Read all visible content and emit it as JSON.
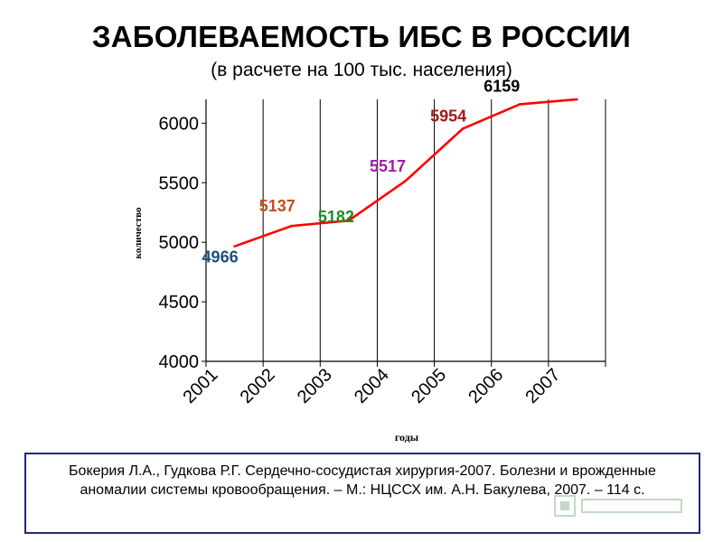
{
  "header": {
    "title": "ЗАБОЛЕВАЕМОСТЬ ИБС В РОССИИ",
    "subtitle": "(в расчете на 100 тыс. населения)"
  },
  "reference": "Бокерия Л.А., Гудкова Р.Г. Сердечно-сосудистая хирургия-2007. Болезни и врожденные аномалии системы кровообращения. – М.: НЦССХ им. А.Н. Бакулева, 2007. – 114 с.",
  "chart_data": {
    "type": "line",
    "title": "ЗАБОЛЕВАЕМОСТЬ ИБС В РОССИИ",
    "subtitle": "(в расчете на 100 тыс. населения)",
    "xlabel": "годы",
    "ylabel": "количество",
    "categories": [
      "2001",
      "2002",
      "2003",
      "2004",
      "2005",
      "2006",
      "2007"
    ],
    "values": [
      4966,
      5137,
      5182,
      5517,
      5954,
      6159,
      6200
    ],
    "yticks": [
      4000,
      4500,
      5000,
      5500,
      6000
    ],
    "ylim": [
      4000,
      6200
    ],
    "grid": "vertical",
    "line_color": "#ff0000",
    "data_labels": [
      {
        "text": "4966",
        "color": "#1f4e79"
      },
      {
        "text": "5137",
        "color": "#c0501e"
      },
      {
        "text": "5182",
        "color": "#1e8c1e"
      },
      {
        "text": "5517",
        "color": "#9b1fa8"
      },
      {
        "text": "5954",
        "color": "#a31818"
      },
      {
        "text": "6159",
        "color": "#000000"
      }
    ]
  }
}
